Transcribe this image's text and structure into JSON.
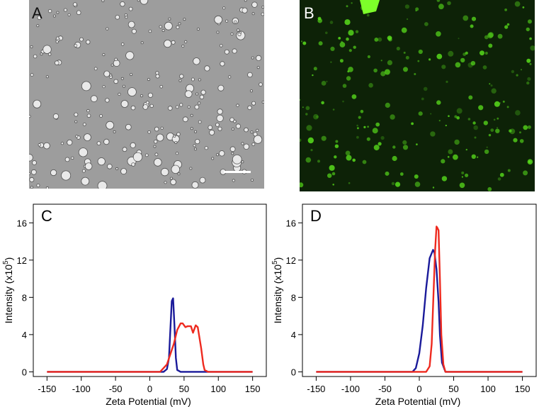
{
  "panels": {
    "a": {
      "letter": "A"
    },
    "b": {
      "letter": "B"
    }
  },
  "colors": {
    "blue_series": "#1a1a9a",
    "red_series": "#ee2a1f",
    "micrograph_bg": "#9d9d9d",
    "fluorescence_bg": "#0d2207",
    "fluorescence_signal": "#59e01c"
  },
  "chart_data": [
    {
      "type": "line",
      "panel_label": "C",
      "xlabel": "Zeta Potential (mV)",
      "ylabel": "Intensity (x10",
      "ylabel_sup": "5",
      "ylabel_close": ")",
      "xlim": [
        -170,
        170
      ],
      "ylim": [
        -0.5,
        18
      ],
      "xticks": [
        -150,
        -100,
        -50,
        0,
        50,
        100,
        150
      ],
      "yticks": [
        0,
        4,
        8,
        12,
        16
      ],
      "grid": false,
      "series": [
        {
          "color_key": "blue_series",
          "x": [
            -150,
            20,
            25,
            28,
            30,
            32,
            34,
            36,
            38,
            40,
            45,
            150
          ],
          "y": [
            0,
            0,
            0.3,
            1.5,
            4.5,
            7.6,
            7.9,
            5.0,
            1.5,
            0.2,
            0,
            0
          ]
        },
        {
          "color_key": "red_series",
          "x": [
            -150,
            15,
            25,
            35,
            40,
            45,
            48,
            52,
            55,
            60,
            63,
            67,
            70,
            75,
            78,
            80,
            85,
            150
          ],
          "y": [
            0,
            0,
            0.8,
            3.0,
            4.5,
            5.2,
            5.2,
            4.8,
            4.9,
            4.9,
            4.2,
            5.0,
            4.8,
            2.5,
            0.8,
            0.2,
            0,
            0
          ]
        }
      ]
    },
    {
      "type": "line",
      "panel_label": "D",
      "xlabel": "Zeta Potential (mV)",
      "ylabel": "Intensity (x10",
      "ylabel_sup": "5",
      "ylabel_close": ")",
      "xlim": [
        -170,
        170
      ],
      "ylim": [
        -0.5,
        18
      ],
      "xticks": [
        -150,
        -100,
        -50,
        0,
        50,
        100,
        150
      ],
      "yticks": [
        0,
        4,
        8,
        12,
        16
      ],
      "grid": false,
      "series": [
        {
          "color_key": "blue_series",
          "x": [
            -150,
            -10,
            -5,
            0,
            5,
            10,
            15,
            20,
            22,
            25,
            28,
            30,
            33,
            38,
            150
          ],
          "y": [
            0,
            0,
            0.4,
            2.0,
            5.0,
            9.0,
            12.2,
            13.1,
            12.8,
            11.0,
            7.5,
            4.0,
            1.0,
            0,
            0
          ]
        },
        {
          "color_key": "red_series",
          "x": [
            -150,
            10,
            15,
            18,
            20,
            23,
            25,
            26,
            28,
            30,
            32,
            35,
            38,
            150
          ],
          "y": [
            0,
            0,
            0.6,
            3.0,
            7.0,
            13.0,
            15.6,
            15.5,
            15.2,
            10.0,
            4.0,
            0.8,
            0,
            0
          ]
        }
      ]
    }
  ]
}
